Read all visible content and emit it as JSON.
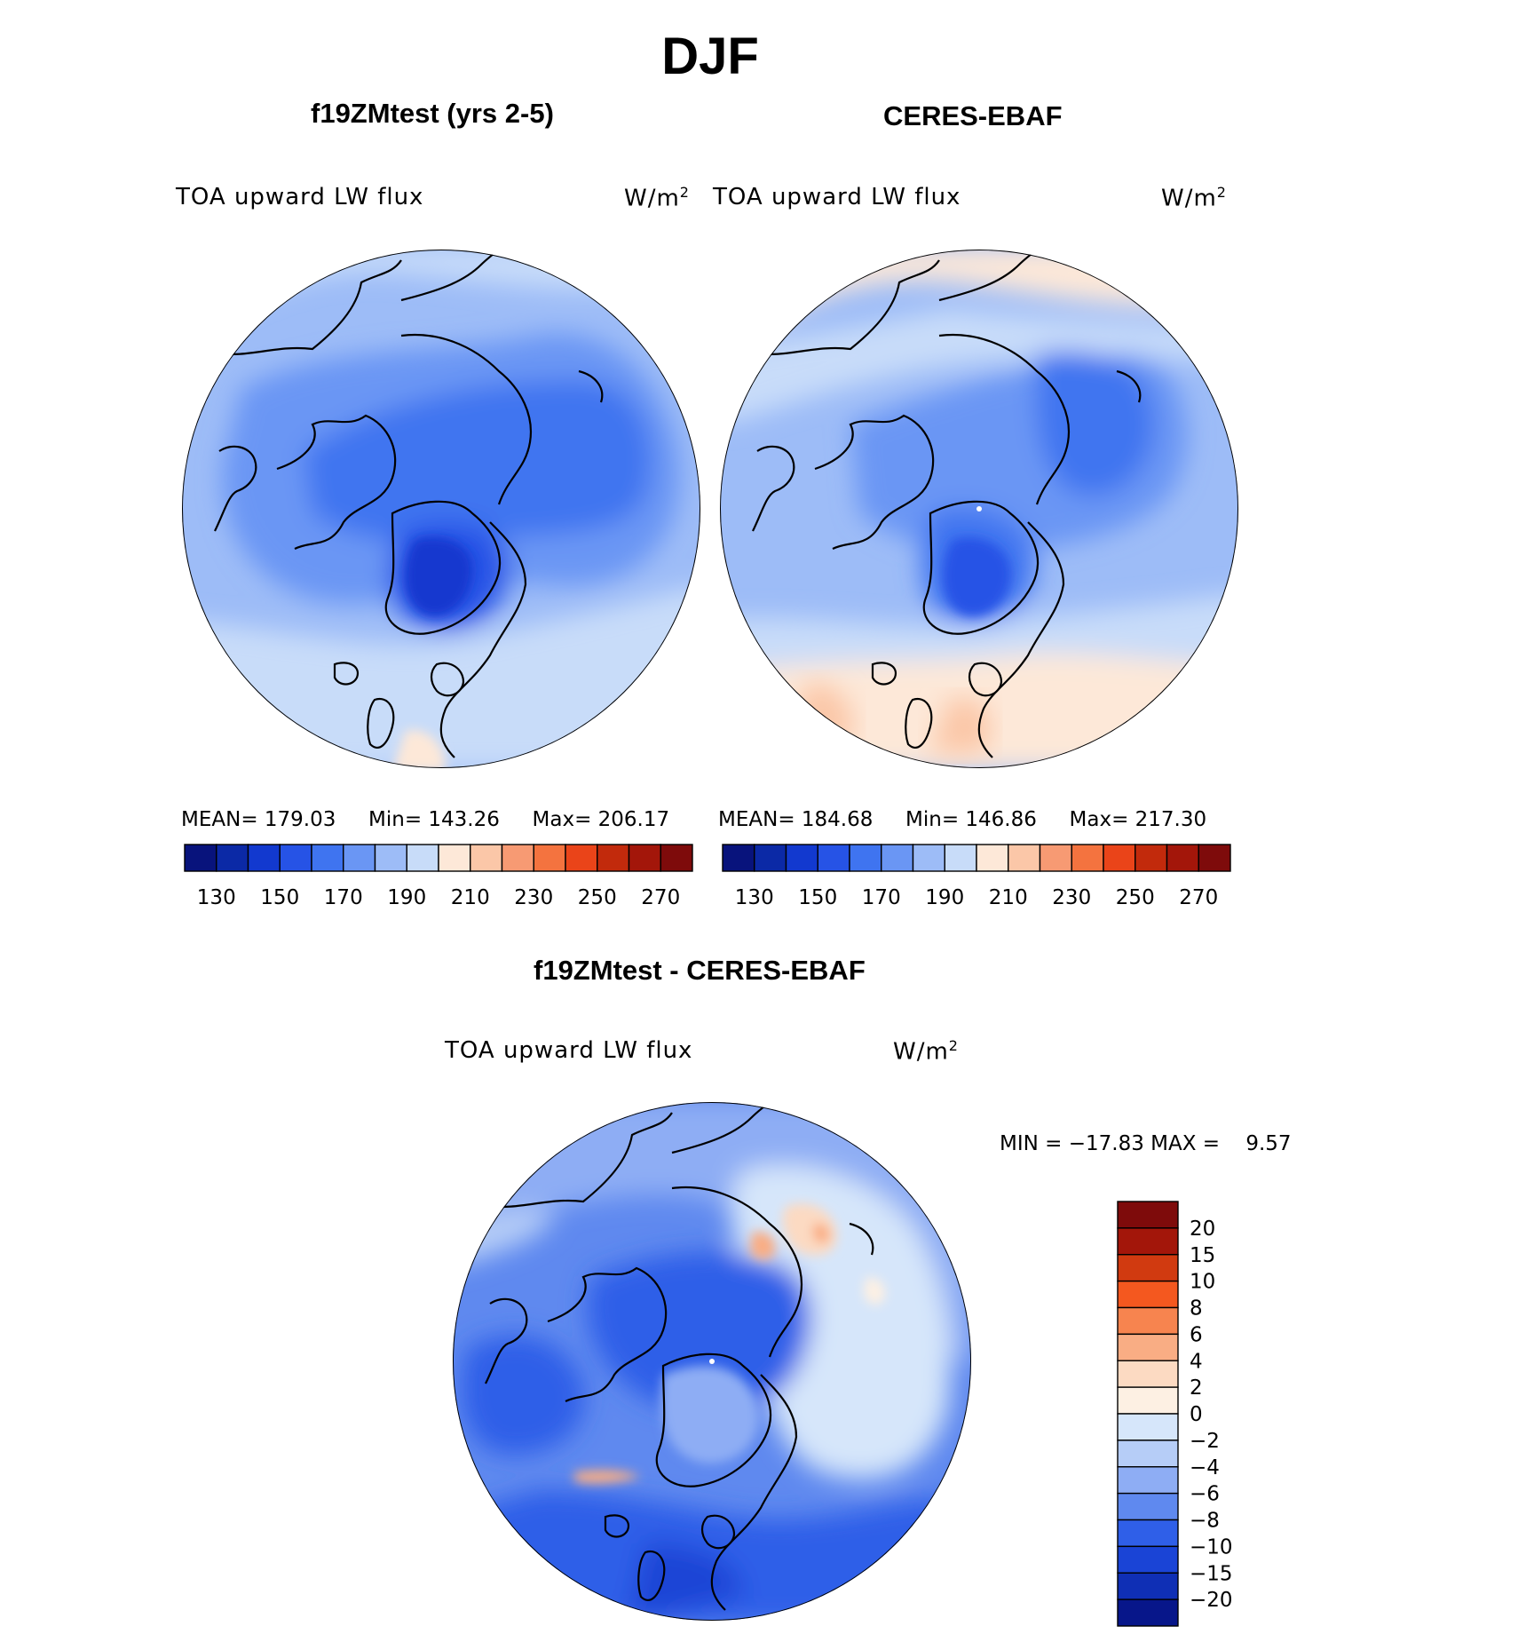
{
  "figure": {
    "title": "DJF"
  },
  "panels": [
    {
      "title": "f19ZMtest (yrs 2-5)",
      "variable": "TOA upward LW flux",
      "units": "W/m",
      "units_sup": "2",
      "stats": {
        "mean": "MEAN= 179.03",
        "min": "Min= 143.26",
        "max": "Max= 206.17"
      }
    },
    {
      "title": "CERES-EBAF",
      "variable": "TOA upward LW flux",
      "units": "W/m",
      "units_sup": "2",
      "stats": {
        "mean": "MEAN= 184.68",
        "min": "Min= 146.86",
        "max": "Max= 217.30"
      }
    }
  ],
  "diff_panel": {
    "title": "f19ZMtest - CERES-EBAF",
    "variable": "TOA upward LW flux",
    "units": "W/m",
    "units_sup": "2",
    "minmax": "MIN = −17.83 MAX =    9.57"
  },
  "chart_data": [
    {
      "type": "heatmap",
      "title": "f19ZMtest (yrs 2-5)",
      "projection": "north polar stereographic",
      "variable": "TOA upward LW flux",
      "units": "W/m2",
      "mean": 179.03,
      "min": 143.26,
      "max": 206.17,
      "colorbar": {
        "levels": [
          130,
          140,
          150,
          160,
          170,
          180,
          190,
          200,
          210,
          220,
          230,
          240,
          250,
          260,
          270
        ],
        "tick_labels": [
          "130",
          "150",
          "170",
          "190",
          "210",
          "230",
          "250",
          "270"
        ],
        "colors": [
          "#08137c",
          "#0b29a6",
          "#1239cf",
          "#2653e6",
          "#3f74f0",
          "#6a96f4",
          "#9dbcf7",
          "#c8dcf9",
          "#fde8d8",
          "#fbc7a8",
          "#f79a73",
          "#f4733f",
          "#ea4419",
          "#c22a0c",
          "#a3160a",
          "#7e0b0b"
        ]
      }
    },
    {
      "type": "heatmap",
      "title": "CERES-EBAF",
      "projection": "north polar stereographic",
      "variable": "TOA upward LW flux",
      "units": "W/m2",
      "mean": 184.68,
      "min": 146.86,
      "max": 217.3,
      "colorbar": {
        "levels": [
          130,
          140,
          150,
          160,
          170,
          180,
          190,
          200,
          210,
          220,
          230,
          240,
          250,
          260,
          270
        ],
        "tick_labels": [
          "130",
          "150",
          "170",
          "190",
          "210",
          "230",
          "250",
          "270"
        ],
        "colors": [
          "#08137c",
          "#0b29a6",
          "#1239cf",
          "#2653e6",
          "#3f74f0",
          "#6a96f4",
          "#9dbcf7",
          "#c8dcf9",
          "#fde8d8",
          "#fbc7a8",
          "#f79a73",
          "#f4733f",
          "#ea4419",
          "#c22a0c",
          "#a3160a",
          "#7e0b0b"
        ]
      }
    },
    {
      "type": "heatmap",
      "title": "f19ZMtest - CERES-EBAF",
      "projection": "north polar stereographic",
      "variable": "TOA upward LW flux",
      "units": "W/m2",
      "min": -17.83,
      "max": 9.57,
      "colorbar": {
        "orientation": "vertical",
        "tick_labels": [
          "20",
          "15",
          "10",
          "8",
          "6",
          "4",
          "2",
          "0",
          "−2",
          "−4",
          "−6",
          "−8",
          "−10",
          "−15",
          "−20"
        ],
        "colors": [
          "#7e0b0b",
          "#a3160a",
          "#d13a10",
          "#f4581f",
          "#f7844f",
          "#f9ad84",
          "#fcdac2",
          "#fdf0e3",
          "#d6e6fa",
          "#b6cdf7",
          "#8eadf4",
          "#5f89ef",
          "#2f5fe8",
          "#1a44d6",
          "#0f2fb5",
          "#07168a"
        ]
      }
    }
  ]
}
